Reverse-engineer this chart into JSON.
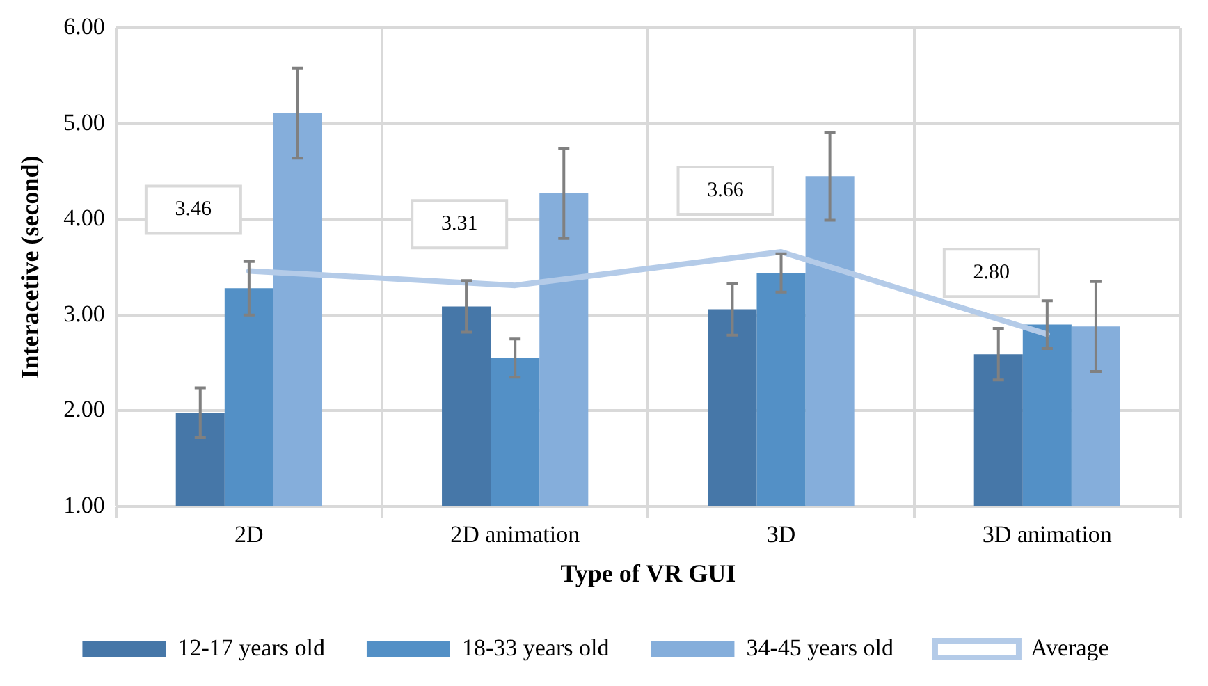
{
  "chart_data": {
    "type": "bar",
    "xlabel": "Type of VR GUI",
    "ylabel": "Interacetive (second)",
    "categories": [
      "2D",
      "2D animation",
      "3D",
      "3D animation"
    ],
    "series": [
      {
        "name": "12-17 years old",
        "color": "#4677a8",
        "values": [
          1.98,
          3.09,
          3.06,
          2.59
        ],
        "errors": [
          0.26,
          0.27,
          0.27,
          0.27
        ]
      },
      {
        "name": "18-33 years old",
        "color": "#5390c6",
        "values": [
          3.28,
          2.55,
          3.44,
          2.9
        ],
        "errors": [
          0.28,
          0.2,
          0.2,
          0.25
        ]
      },
      {
        "name": "34-45 years old",
        "color": "#85aedb",
        "values": [
          5.11,
          4.27,
          4.45,
          2.88
        ],
        "errors": [
          0.47,
          0.47,
          0.46,
          0.47
        ]
      },
      {
        "name": "Average",
        "type": "line",
        "color": "#b4cbe8",
        "values": [
          3.46,
          3.31,
          3.66,
          2.8
        ],
        "value_labels": [
          "3.46",
          "3.31",
          "3.66",
          "2.80"
        ]
      }
    ],
    "ylim": [
      1,
      6
    ],
    "yticks": [
      {
        "value": 1,
        "label": "1.00"
      },
      {
        "value": 2,
        "label": "2.00"
      },
      {
        "value": 3,
        "label": "3.00"
      },
      {
        "value": 4,
        "label": "4.00"
      },
      {
        "value": 5,
        "label": "5.00"
      },
      {
        "value": 6,
        "label": "6.00"
      }
    ],
    "grid": true,
    "legend": "bottom",
    "marker": "none"
  }
}
